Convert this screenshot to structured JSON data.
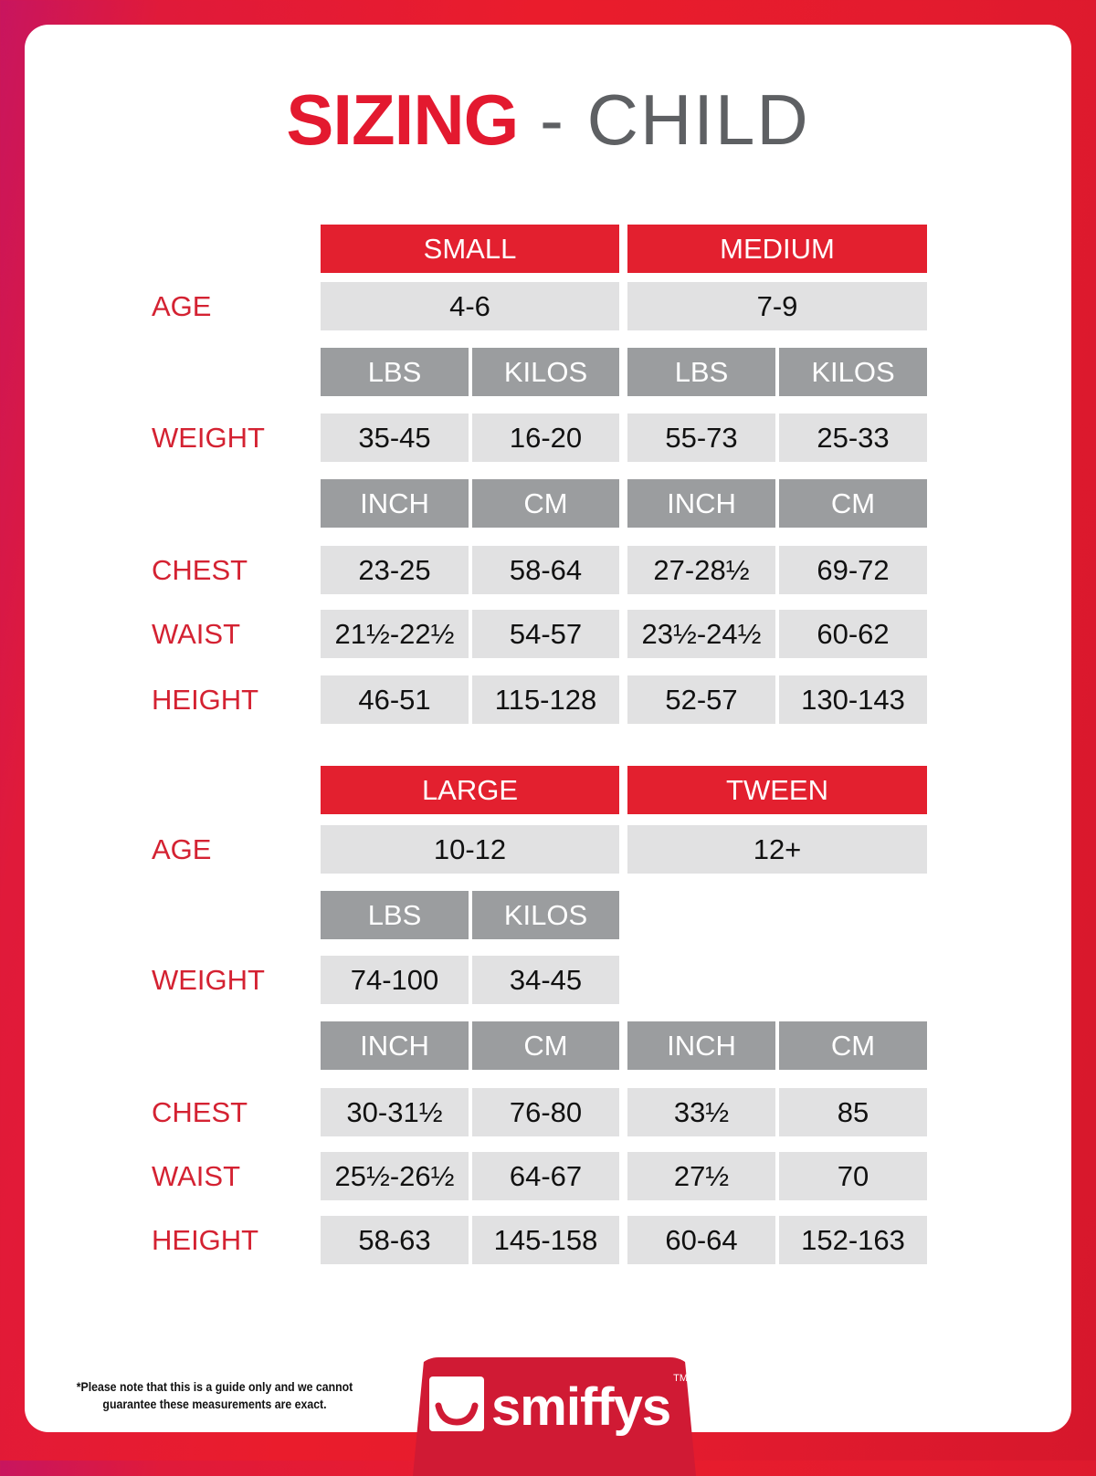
{
  "title": {
    "bold": "SIZING",
    "light": " - CHILD"
  },
  "colors": {
    "accent": "#e3202f",
    "unit_header": "#9b9d9f",
    "cell": "#e1e1e2",
    "label": "#d42232",
    "title_gray": "#5e6063"
  },
  "labels": {
    "age": "AGE",
    "weight": "WEIGHT",
    "chest": "CHEST",
    "waist": "WAIST",
    "height": "HEIGHT"
  },
  "units": {
    "lbs": "LBS",
    "kilos": "KILOS",
    "inch": "INCH",
    "cm": "CM"
  },
  "blocks": [
    {
      "sizes": [
        {
          "name": "SMALL",
          "age": "4-6",
          "weight": [
            "35-45",
            "16-20"
          ],
          "chest": [
            "23-25",
            "58-64"
          ],
          "waist": [
            "21½-22½",
            "54-57"
          ],
          "height": [
            "46-51",
            "115-128"
          ]
        },
        {
          "name": "MEDIUM",
          "age": "7-9",
          "weight": [
            "55-73",
            "25-33"
          ],
          "chest": [
            "27-28½",
            "69-72"
          ],
          "waist": [
            "23½-24½",
            "60-62"
          ],
          "height": [
            "52-57",
            "130-143"
          ]
        }
      ]
    },
    {
      "sizes": [
        {
          "name": "LARGE",
          "age": "10-12",
          "weight": [
            "74-100",
            "34-45"
          ],
          "chest": [
            "30-31½",
            "76-80"
          ],
          "waist": [
            "25½-26½",
            "64-67"
          ],
          "height": [
            "58-63",
            "145-158"
          ]
        },
        {
          "name": "TWEEN",
          "age": "12+",
          "weight": null,
          "chest": [
            "33½",
            "85"
          ],
          "waist": [
            "27½",
            "70"
          ],
          "height": [
            "60-64",
            "152-163"
          ]
        }
      ]
    }
  ],
  "footnote": "*Please note that this is a guide only and we cannot guarantee these measurements are exact.",
  "brand": {
    "name": "smiffys",
    "tm": "TM",
    "icon": "smile-icon"
  }
}
